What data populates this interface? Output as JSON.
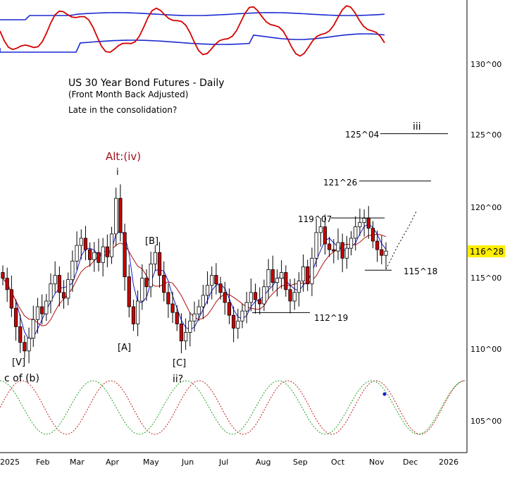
{
  "chart_data": {
    "type": "candlestick",
    "title": "US 30 Year Bond Futures - Daily",
    "subtitle": "(Front Month Back Adjusted)",
    "annotation": "Late in the consolidation?",
    "price_axis": {
      "ticks": [
        {
          "label": "130^00",
          "value": 130
        },
        {
          "label": "125^00",
          "value": 125
        },
        {
          "label": "120^00",
          "value": 120
        },
        {
          "label": "115^00",
          "value": 115
        },
        {
          "label": "110^00",
          "value": 110
        },
        {
          "label": "105^00",
          "value": 105
        }
      ],
      "current_label": "116^28",
      "current_value": 116.875
    },
    "months": [
      "2025",
      "Feb",
      "Mar",
      "Apr",
      "May",
      "Jun",
      "Jul",
      "Aug",
      "Sep",
      "Oct",
      "Nov",
      "Dec",
      "2026"
    ],
    "levels": [
      {
        "label": "125^04",
        "value": 125.125
      },
      {
        "label": "121^26",
        "value": 121.8125
      },
      {
        "label": "119^07",
        "value": 119.22
      },
      {
        "label": "115^18",
        "value": 115.5625
      },
      {
        "label": "112^19",
        "value": 112.59
      }
    ],
    "wave_labels": [
      {
        "text": "Alt:(iv)",
        "style": "alt"
      },
      {
        "text": "i"
      },
      {
        "text": "[B]"
      },
      {
        "text": "[A]"
      },
      {
        "text": "[V]"
      },
      {
        "text": "c of (b)"
      },
      {
        "text": "[C]"
      },
      {
        "text": "ii?"
      },
      {
        "text": "iii"
      }
    ],
    "colors": {
      "candle_up": "#ffffff",
      "candle_down": "#cc0000",
      "ma_fast": "#1a1ac8",
      "ma_slow": "#b01010",
      "oscillator": "#d40000",
      "bands": "#1a2ad0",
      "cycle_a": "#c02020",
      "cycle_b": "#20a020"
    },
    "close_series": [
      115.0,
      114.2,
      112.9,
      111.6,
      110.5,
      109.9,
      110.8,
      112.1,
      113.0,
      112.5,
      113.4,
      114.6,
      115.2,
      114.0,
      113.6,
      114.9,
      116.2,
      117.3,
      117.8,
      117.0,
      116.3,
      116.8,
      116.1,
      117.2,
      116.5,
      118.1,
      120.6,
      118.2,
      115.1,
      113.0,
      111.8,
      113.4,
      115.0,
      114.4,
      116.0,
      116.8,
      115.2,
      114.0,
      113.2,
      112.6,
      111.8,
      110.6,
      111.2,
      112.0,
      112.5,
      113.0,
      113.8,
      114.5,
      115.2,
      114.6,
      114.0,
      113.3,
      112.4,
      111.5,
      112.0,
      112.7,
      113.3,
      114.0,
      113.5,
      113.2,
      114.4,
      115.6,
      114.7,
      115.0,
      115.4,
      114.2,
      113.4,
      114.0,
      114.8,
      115.8,
      114.6,
      116.4,
      118.2,
      118.6,
      117.4,
      117.0,
      116.9,
      117.5,
      116.4,
      117.1,
      117.8,
      118.6,
      118.9,
      119.2,
      118.5,
      117.6,
      117.0,
      116.6,
      116.9
    ]
  }
}
